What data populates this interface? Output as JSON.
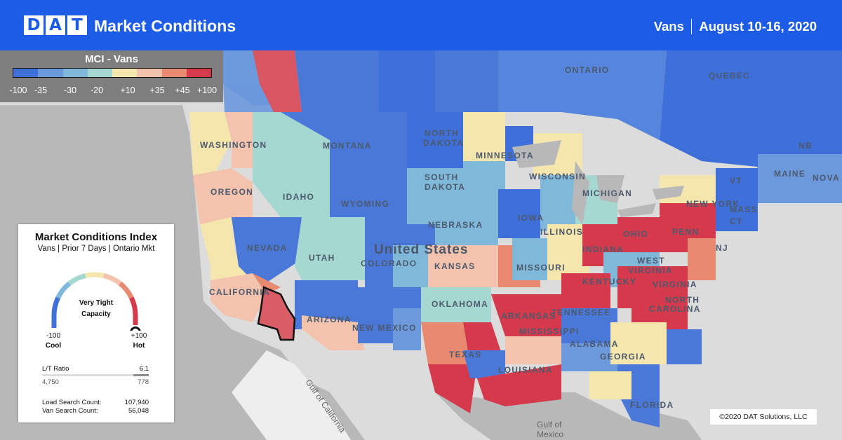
{
  "header": {
    "logo_letters": [
      "D",
      "A",
      "T"
    ],
    "title": "Market Conditions",
    "equipment": "Vans",
    "date_range": "August 10-16, 2020"
  },
  "legend": {
    "title": "MCI - Vans",
    "colors": [
      "#3f6fd8",
      "#6c98dc",
      "#7fb8d8",
      "#a5d8d0",
      "#f5e6ae",
      "#f3c3ad",
      "#e88a70",
      "#d43a4c"
    ],
    "ticks": [
      "-100",
      "-35",
      "-30",
      "-20",
      "+10",
      "+35",
      "+45",
      "+100"
    ]
  },
  "card": {
    "title": "Market Conditions Index",
    "subtitle": "Vans | Prior 7 Days | Ontario Mkt",
    "gauge_text_line1": "Very Tight",
    "gauge_text_line2": "Capacity",
    "gauge_value_fraction": 0.97,
    "min_value": "-100",
    "min_label": "Cool",
    "max_value": "+100",
    "max_label": "Hot",
    "lt_ratio_label": "L/T Ratio",
    "lt_ratio_value": "6.1",
    "loads": "4,750",
    "trucks": "778",
    "load_search_label": "Load Search Count:",
    "load_search_value": "107,940",
    "van_search_label": "Van Search Count:",
    "van_search_value": "56,048"
  },
  "map": {
    "country_label": "United States",
    "highlighted_market": "Ontario, CA",
    "water_labels": [
      "Gulf of California",
      "Gulf of Mexico"
    ],
    "state_labels": [
      "WASHINGTON",
      "OREGON",
      "IDAHO",
      "MONTANA",
      "NORTH DAKOTA",
      "SOUTH DAKOTA",
      "MINNESOTA",
      "WISCONSIN",
      "MICHIGAN",
      "WYOMING",
      "NEBRASKA",
      "IOWA",
      "ILLINOIS",
      "NEVADA",
      "UTAH",
      "COLORADO",
      "KANSAS",
      "MISSOURI",
      "INDIANA",
      "OHIO",
      "PENN",
      "NEW YORK",
      "MAINE",
      "NOVA SC",
      "NB",
      "QUEBEC",
      "ONTARIO",
      "VT",
      "MASS",
      "CT",
      "NJ",
      "WEST VIRGINIA",
      "VIRGINIA",
      "KENTUCKY",
      "CALIFORNIA",
      "ARIZONA",
      "NEW MEXICO",
      "OKLAHOMA",
      "TEXAS",
      "ARKANSAS",
      "TENNESSEE",
      "MISSISSIPPI",
      "ALABAMA",
      "GEORGIA",
      "LOUISIANA",
      "NORTH CAROLINA",
      "FLORIDA"
    ]
  },
  "copyright": "©2020 DAT Solutions, LLC"
}
